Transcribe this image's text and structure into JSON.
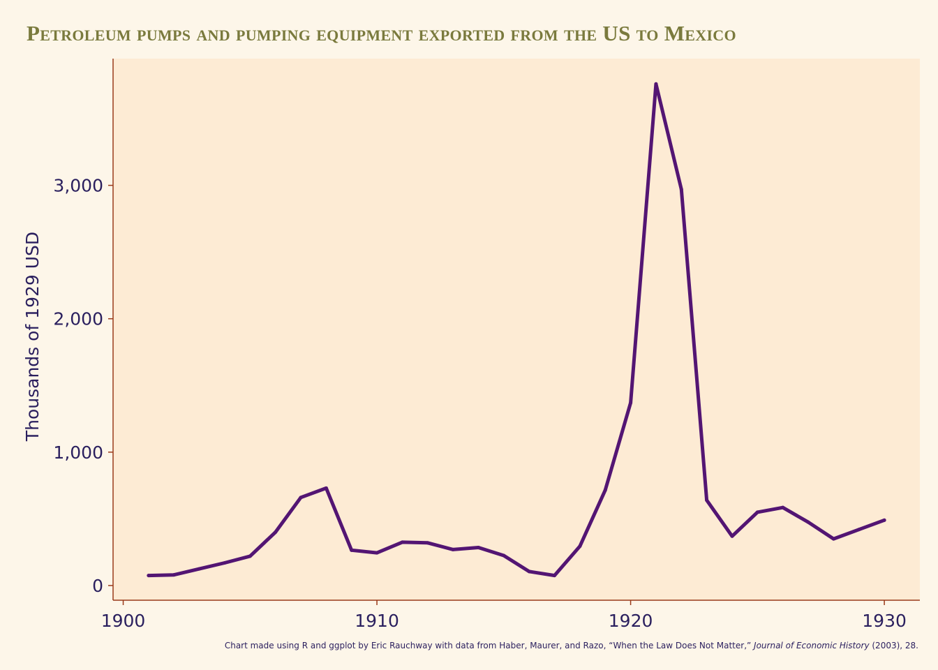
{
  "chart_data": {
    "type": "line",
    "title": "Petroleum pumps and pumping equipment exported from the US to Mexico",
    "xlabel": "",
    "ylabel": "Thousands of 1929 USD",
    "xlim": [
      1899.6,
      1931.4
    ],
    "ylim": [
      -110,
      3950
    ],
    "x_ticks": [
      1900,
      1910,
      1920,
      1930
    ],
    "x_tick_labels": [
      "1900",
      "1910",
      "1920",
      "1930"
    ],
    "y_ticks": [
      0,
      1000,
      2000,
      3000
    ],
    "y_tick_labels": [
      "0",
      "1,000",
      "2,000",
      "3,000"
    ],
    "grid": false,
    "series": [
      {
        "name": "",
        "color": "#531573",
        "x": [
          1901,
          1902,
          1903,
          1904,
          1905,
          1906,
          1907,
          1908,
          1909,
          1910,
          1911,
          1912,
          1913,
          1914,
          1915,
          1916,
          1917,
          1918,
          1919,
          1920,
          1921,
          1922,
          1923,
          1924,
          1925,
          1926,
          1927,
          1928,
          1929,
          1930
        ],
        "y": [
          75,
          80,
          125,
          170,
          220,
          400,
          660,
          730,
          265,
          245,
          325,
          320,
          270,
          285,
          225,
          105,
          75,
          295,
          715,
          1370,
          3760,
          2970,
          640,
          370,
          550,
          585,
          475,
          350,
          420,
          490
        ]
      }
    ],
    "colors": {
      "background": "#fdf6e9",
      "panel": "#fdebd4",
      "axis": "#9a3a1a",
      "text": "#2a1f5e",
      "title": "#7a7a3d"
    }
  },
  "caption": {
    "prefix": "Chart made using R and ggplot by Eric Rauchway with data from Haber, Maurer, and Razo, “When the Law Does Not Matter,” ",
    "journal": "Journal of Economic History",
    "suffix": " (2003), 28."
  }
}
